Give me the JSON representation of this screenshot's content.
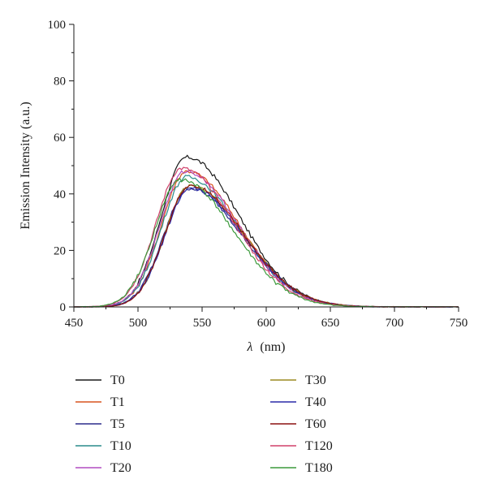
{
  "chart_data": {
    "type": "line",
    "xlabel_symbol": "λ",
    "xlabel_unit": "(nm)",
    "ylabel": "Emission Intensity (a.u.)",
    "xlim": [
      450,
      750
    ],
    "ylim": [
      0,
      100
    ],
    "x_ticks": [
      450,
      500,
      550,
      600,
      650,
      700,
      750
    ],
    "y_ticks": [
      0,
      20,
      40,
      60,
      80,
      100
    ],
    "grid": false,
    "legend_position": "bottom",
    "series": [
      {
        "name": "T0",
        "color": "#1a1a1a",
        "peak_x": 538,
        "peak_y": 53
      },
      {
        "name": "T1",
        "color": "#d9531e",
        "peak_x": 538,
        "peak_y": 48
      },
      {
        "name": "T5",
        "color": "#2b2b8c",
        "peak_x": 540,
        "peak_y": 42
      },
      {
        "name": "T10",
        "color": "#2a8c8c",
        "peak_x": 538,
        "peak_y": 46
      },
      {
        "name": "T20",
        "color": "#b04cc0",
        "peak_x": 537,
        "peak_y": 48
      },
      {
        "name": "T30",
        "color": "#9c8a20",
        "peak_x": 541,
        "peak_y": 43
      },
      {
        "name": "T40",
        "color": "#2a2aa8",
        "peak_x": 541,
        "peak_y": 42
      },
      {
        "name": "T60",
        "color": "#8b1010",
        "peak_x": 541,
        "peak_y": 43
      },
      {
        "name": "T120",
        "color": "#d0406a",
        "peak_x": 534,
        "peak_y": 49
      },
      {
        "name": "T180",
        "color": "#3c9a3c",
        "peak_x": 533,
        "peak_y": 45
      }
    ]
  }
}
